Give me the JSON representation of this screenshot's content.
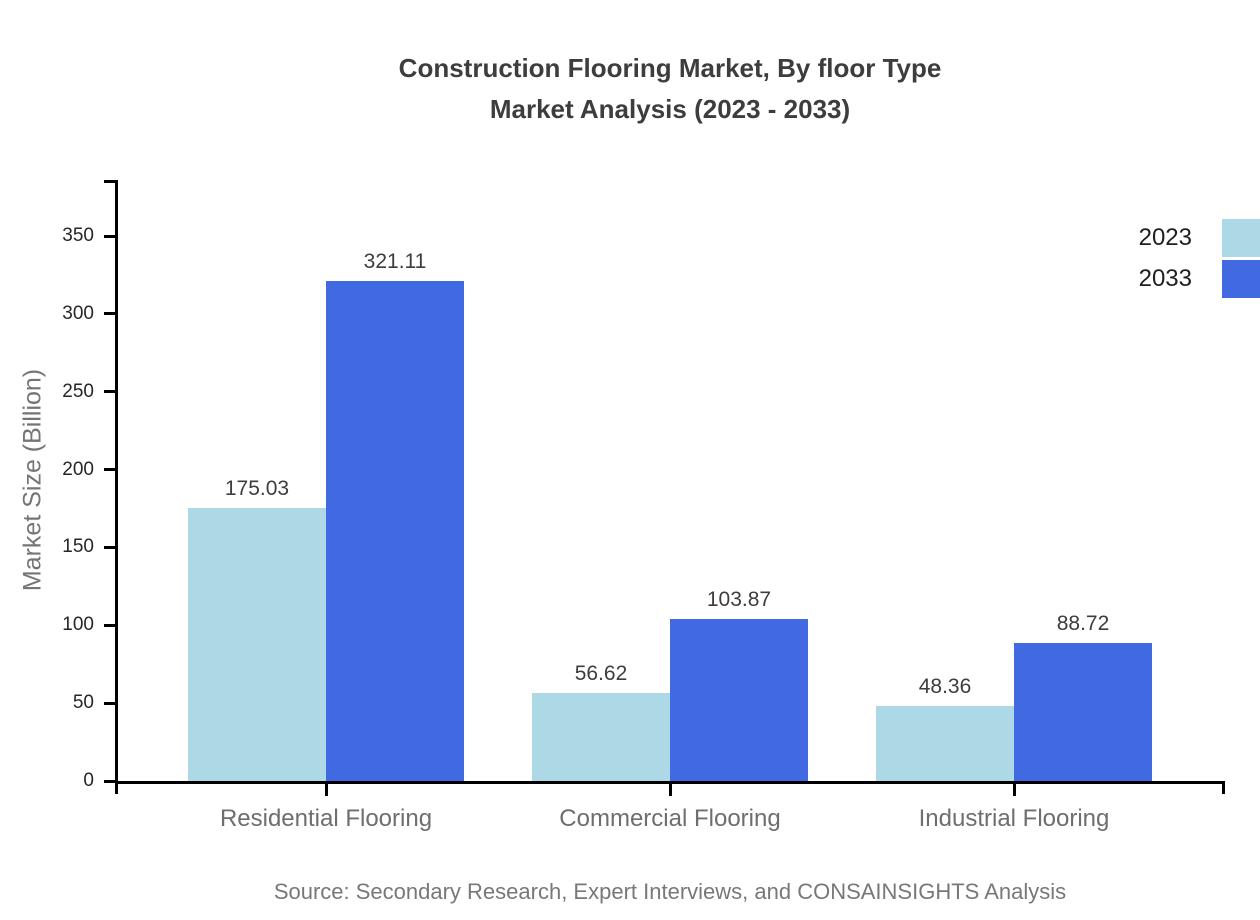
{
  "title": {
    "line1": "Construction Flooring Market, By floor Type",
    "line2": "Market Analysis (2023 - 2033)"
  },
  "source": "Source: Secondary Research, Expert Interviews, and CONSAINSIGHTS Analysis",
  "chart_data": {
    "type": "bar",
    "title": "Construction Flooring Market, By floor Type Market Analysis (2023 - 2033)",
    "categories": [
      "Residential Flooring",
      "Commercial Flooring",
      "Industrial Flooring"
    ],
    "series": [
      {
        "name": "2023",
        "color": "#ADD8E6",
        "values": [
          175.03,
          56.62,
          48.36
        ]
      },
      {
        "name": "2033",
        "color": "#4169E1",
        "values": [
          321.11,
          103.87,
          88.72
        ]
      }
    ],
    "ylabel": "Market Size (Billion)",
    "yticks": [
      0,
      50,
      100,
      150,
      200,
      250,
      300,
      350
    ],
    "ylim": [
      0,
      386
    ],
    "grid": false,
    "legend_position": "top-right",
    "value_labels": true,
    "axis_color": "#000000"
  }
}
